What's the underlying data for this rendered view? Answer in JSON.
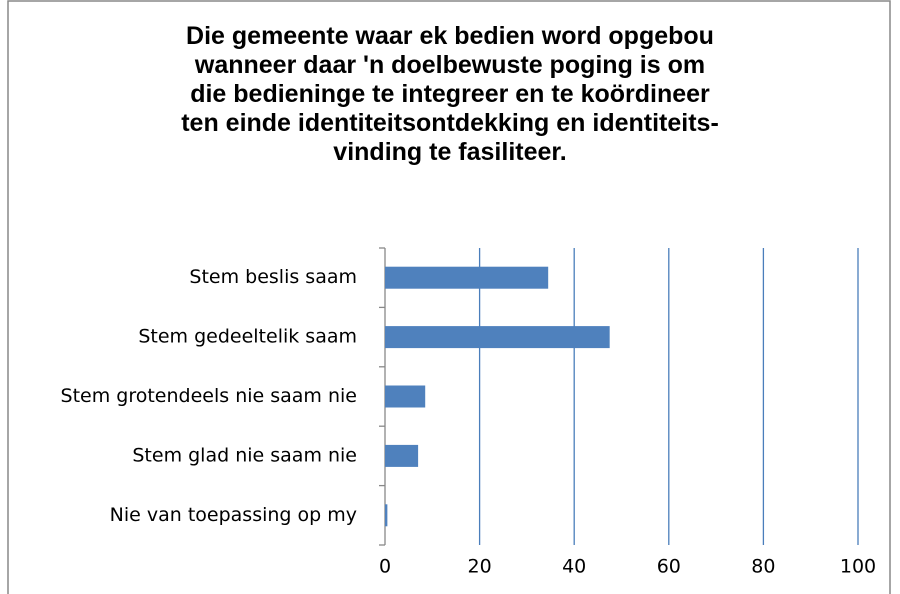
{
  "chart_data": {
    "type": "bar",
    "orientation": "horizontal",
    "title": "Die gemeente waar ek bedien word opgebou\nwanneer daar 'n doelbewuste poging is om\ndie bedieninge te integreer en te koördineer\nten einde identiteitsontdekking  en identiteits-\nvinding te fasiliteer.",
    "categories": [
      "Stem beslis saam",
      "Stem gedeeltelik saam",
      "Stem grotendeels nie saam nie",
      "Stem glad nie saam nie",
      "Nie van toepassing op my"
    ],
    "values": [
      34.5,
      47.5,
      8.5,
      7,
      0.5
    ],
    "color": "#4f81bd",
    "xlim": [
      0,
      100
    ],
    "xticks": [
      0,
      20,
      40,
      60,
      80,
      100
    ],
    "grid": true
  }
}
